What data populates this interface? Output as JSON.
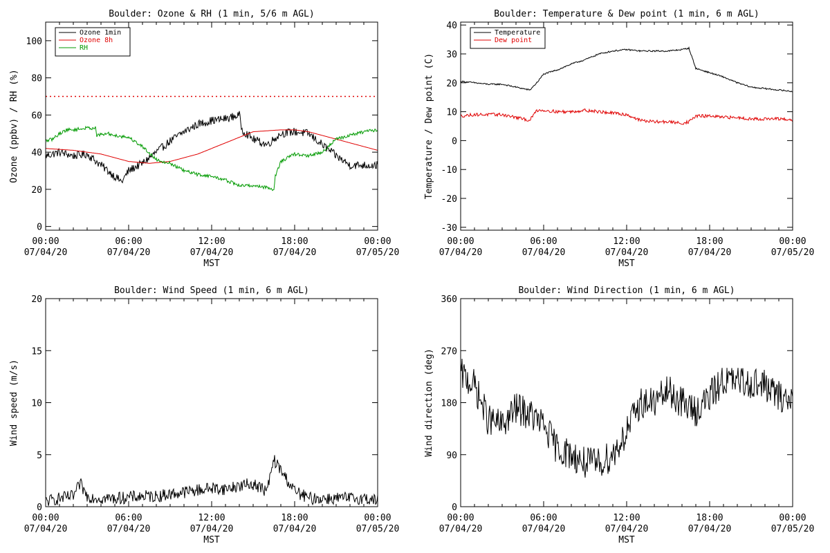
{
  "chart_data": [
    {
      "id": "ozone",
      "type": "line",
      "title": "Boulder: Ozone & RH (1 min, 5/6 m AGL)",
      "xlabel": "MST",
      "ylabel": "Ozone (ppbv) / RH (%)",
      "xlim": [
        "07/04/20 00:00",
        "07/05/20 00:00"
      ],
      "ylim": [
        -2,
        110
      ],
      "yticks": [
        0,
        20,
        40,
        60,
        80,
        100
      ],
      "xtick_labels": [
        {
          "time": "00:00",
          "date": "07/04/20"
        },
        {
          "time": "06:00",
          "date": "07/04/20"
        },
        {
          "time": "12:00",
          "date": "07/04/20"
        },
        {
          "time": "18:00",
          "date": "07/04/20"
        },
        {
          "time": "00:00",
          "date": "07/05/20"
        }
      ],
      "legend": {
        "position": "top-left",
        "entries": [
          {
            "name": "Ozone 1min",
            "color": "#000000"
          },
          {
            "name": "Ozone 8h",
            "color": "#e00000"
          },
          {
            "name": "RH",
            "color": "#009a00"
          }
        ]
      },
      "reference_lines": [
        {
          "y": 70,
          "color": "#e00000",
          "style": "dotted"
        }
      ],
      "series": [
        {
          "name": "Ozone 1min",
          "color": "#000000",
          "noise": 2.2,
          "x": [
            0,
            1,
            2,
            3,
            4,
            5,
            5.5,
            6,
            7,
            8,
            9,
            10,
            11,
            12,
            13,
            14,
            14.2,
            15,
            16,
            17,
            18,
            19,
            20,
            21,
            22,
            23,
            24
          ],
          "y": [
            38,
            40,
            38,
            39,
            33,
            27,
            24,
            30,
            34,
            40,
            46,
            51,
            55,
            57,
            58,
            60,
            52,
            47,
            44,
            50,
            51,
            50,
            44,
            38,
            33,
            33,
            33
          ]
        },
        {
          "name": "Ozone 8h",
          "color": "#e00000",
          "noise": 0,
          "x": [
            0,
            2,
            4,
            6,
            7.5,
            9,
            11,
            13,
            15,
            17,
            18,
            19,
            20,
            21,
            22,
            24
          ],
          "y": [
            42,
            41,
            39,
            35,
            34,
            35,
            39,
            45,
            51,
            52,
            52,
            51,
            49,
            47,
            45,
            41
          ]
        },
        {
          "name": "RH",
          "color": "#009a00",
          "noise": 0.9,
          "x": [
            0,
            0.5,
            1,
            1.5,
            2,
            3,
            3.6,
            3.7,
            4.5,
            5,
            6,
            7,
            8,
            9,
            10,
            11,
            12,
            13,
            14,
            15,
            16,
            16.5,
            16.6,
            17,
            18,
            19,
            20,
            21,
            22,
            23,
            24
          ],
          "y": [
            46,
            47,
            50,
            52,
            52,
            53,
            53,
            49,
            50,
            49,
            48,
            43,
            36,
            34,
            30,
            28,
            27,
            25,
            22,
            22,
            21,
            20,
            27,
            35,
            39,
            38,
            40,
            47,
            49,
            51,
            52
          ]
        }
      ]
    },
    {
      "id": "temp",
      "type": "line",
      "title": "Boulder: Temperature & Dew point (1 min, 6 m AGL)",
      "xlabel": "MST",
      "ylabel": "Temperature / Dew point (C)",
      "xlim": [
        "07/04/20 00:00",
        "07/05/20 00:00"
      ],
      "ylim": [
        -31,
        41
      ],
      "yticks": [
        -30,
        -20,
        -10,
        0,
        10,
        20,
        30,
        40
      ],
      "xtick_labels": [
        {
          "time": "00:00",
          "date": "07/04/20"
        },
        {
          "time": "06:00",
          "date": "07/04/20"
        },
        {
          "time": "12:00",
          "date": "07/04/20"
        },
        {
          "time": "18:00",
          "date": "07/04/20"
        },
        {
          "time": "00:00",
          "date": "07/05/20"
        }
      ],
      "legend": {
        "position": "top-left",
        "entries": [
          {
            "name": "Temperature",
            "color": "#000000"
          },
          {
            "name": "Dew point",
            "color": "#e00000"
          }
        ]
      },
      "reference_lines": [],
      "series": [
        {
          "name": "Temperature",
          "color": "#000000",
          "noise": 0.25,
          "x": [
            0,
            1,
            2,
            3,
            4,
            5,
            5.5,
            6,
            7,
            8,
            9,
            10,
            11,
            12,
            13,
            14,
            15,
            16,
            16.5,
            17,
            18,
            19,
            20,
            21,
            22,
            23,
            24
          ],
          "y": [
            20.5,
            20,
            19.5,
            19.5,
            18.5,
            17.5,
            20,
            23,
            24.5,
            26.5,
            28,
            30,
            31,
            31.5,
            31,
            31,
            31,
            31.5,
            32,
            25,
            23.5,
            22,
            20,
            18.5,
            18,
            17.5,
            17
          ]
        },
        {
          "name": "Dew point",
          "color": "#e00000",
          "noise": 0.55,
          "x": [
            0,
            1,
            2,
            3,
            4,
            5,
            5.5,
            6,
            7,
            8,
            9,
            10,
            11,
            12,
            13,
            14,
            15,
            16,
            16.5,
            17,
            18,
            19,
            20,
            21,
            22,
            23,
            24
          ],
          "y": [
            8.5,
            9,
            9,
            9,
            8,
            7,
            10.5,
            10.5,
            10,
            10,
            10.5,
            10,
            9.5,
            9,
            7,
            6.5,
            6.5,
            6,
            6.5,
            8.5,
            8.5,
            8,
            8,
            7.5,
            7.5,
            7.5,
            7
          ]
        }
      ]
    },
    {
      "id": "wspd",
      "type": "line",
      "title": "Boulder: Wind Speed (1 min, 6 m AGL)",
      "xlabel": "MST",
      "ylabel": "Wind speed (m/s)",
      "xlim": [
        "07/04/20 00:00",
        "07/05/20 00:00"
      ],
      "ylim": [
        0,
        20
      ],
      "yticks": [
        0,
        5,
        10,
        15,
        20
      ],
      "xtick_labels": [
        {
          "time": "00:00",
          "date": "07/04/20"
        },
        {
          "time": "06:00",
          "date": "07/04/20"
        },
        {
          "time": "12:00",
          "date": "07/04/20"
        },
        {
          "time": "18:00",
          "date": "07/04/20"
        },
        {
          "time": "00:00",
          "date": "07/05/20"
        }
      ],
      "legend": null,
      "reference_lines": [],
      "series": [
        {
          "name": "",
          "color": "#000000",
          "noise": 0.6,
          "floor": 0,
          "x": [
            0,
            1,
            2,
            2.5,
            3,
            4,
            5,
            6,
            7,
            8,
            9,
            10,
            11,
            12,
            13,
            14,
            15,
            16,
            16.5,
            17,
            18,
            19,
            20,
            21,
            22,
            23,
            24
          ],
          "y": [
            0.5,
            0.8,
            1,
            2.2,
            1,
            0.8,
            0.8,
            0.9,
            1,
            1,
            1.2,
            1.4,
            1.6,
            1.8,
            1.7,
            2,
            2.2,
            1.5,
            4.5,
            3.5,
            1.5,
            0.8,
            0.8,
            0.8,
            0.8,
            0.8,
            0.6
          ]
        }
      ]
    },
    {
      "id": "wdir",
      "type": "line",
      "title": "Boulder: Wind Direction (1 min, 6 m AGL)",
      "xlabel": "MST",
      "ylabel": "Wind direction (deg)",
      "xlim": [
        "07/04/20 00:00",
        "07/05/20 00:00"
      ],
      "ylim": [
        0,
        360
      ],
      "yticks": [
        0,
        90,
        180,
        270,
        360
      ],
      "xtick_labels": [
        {
          "time": "00:00",
          "date": "07/04/20"
        },
        {
          "time": "06:00",
          "date": "07/04/20"
        },
        {
          "time": "12:00",
          "date": "07/04/20"
        },
        {
          "time": "18:00",
          "date": "07/04/20"
        },
        {
          "time": "00:00",
          "date": "07/05/20"
        }
      ],
      "legend": null,
      "reference_lines": [],
      "series": [
        {
          "name": "",
          "color": "#000000",
          "noise": 28,
          "floor": 0,
          "ceil": 360,
          "x": [
            0,
            1,
            2,
            3,
            4,
            5,
            6,
            7,
            8,
            9,
            10,
            11,
            12,
            13,
            14,
            15,
            16,
            17,
            18,
            19,
            20,
            21,
            22,
            23,
            24
          ],
          "y": [
            230,
            210,
            150,
            140,
            170,
            160,
            140,
            100,
            90,
            75,
            75,
            90,
            130,
            180,
            180,
            200,
            180,
            165,
            190,
            220,
            215,
            215,
            210,
            190,
            185
          ]
        }
      ]
    }
  ]
}
